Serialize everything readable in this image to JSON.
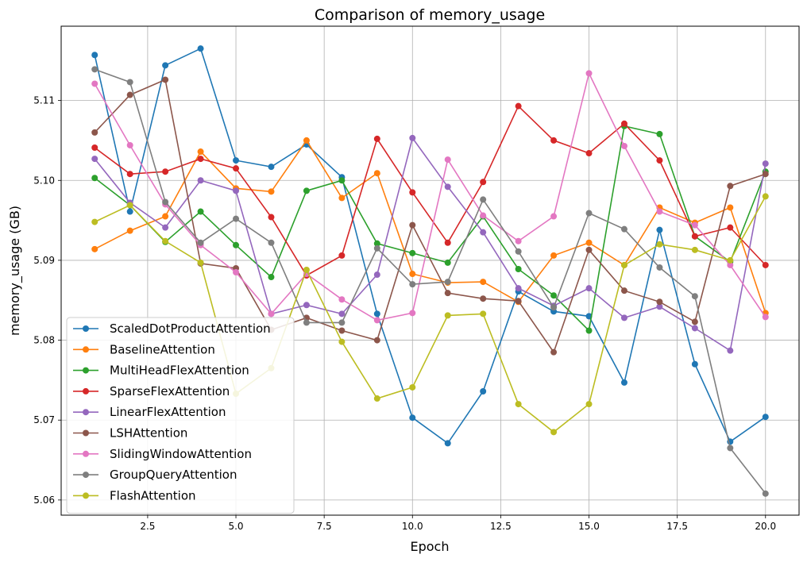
{
  "chart_data": {
    "type": "line",
    "title": "Comparison of memory_usage",
    "xlabel": "Epoch",
    "ylabel": "memory_usage (GB)",
    "xlim": [
      0.05,
      20.95
    ],
    "ylim": [
      5.0581,
      5.1193
    ],
    "xticks": [
      2.5,
      5.0,
      7.5,
      10.0,
      12.5,
      15.0,
      17.5,
      20.0
    ],
    "xtick_labels": [
      "2.5",
      "5.0",
      "7.5",
      "10.0",
      "12.5",
      "15.0",
      "17.5",
      "20.0"
    ],
    "yticks": [
      5.06,
      5.07,
      5.08,
      5.09,
      5.1,
      5.11
    ],
    "ytick_labels": [
      "5.06",
      "5.07",
      "5.08",
      "5.09",
      "5.10",
      "5.11"
    ],
    "grid": true,
    "legend_position": "lower-left",
    "x": [
      1,
      2,
      3,
      4,
      5,
      6,
      7,
      8,
      9,
      10,
      11,
      12,
      13,
      14,
      15,
      16,
      17,
      18,
      19,
      20
    ],
    "series": [
      {
        "name": "ScaledDotProductAttention",
        "color": "#1f77b4",
        "values": [
          5.1157,
          5.0961,
          5.1144,
          5.1165,
          5.1025,
          5.1017,
          5.1045,
          5.1004,
          5.0833,
          5.0703,
          5.0671,
          5.0736,
          5.0861,
          5.0836,
          5.083,
          5.0747,
          5.0938,
          5.077,
          5.0673,
          5.0704
        ]
      },
      {
        "name": "BaselineAttention",
        "color": "#ff7f0e",
        "values": [
          5.0914,
          5.0937,
          5.0955,
          5.1036,
          5.099,
          5.0986,
          5.105,
          5.0978,
          5.1009,
          5.0883,
          5.0872,
          5.0873,
          5.0848,
          5.0906,
          5.0922,
          5.0894,
          5.0966,
          5.0947,
          5.0966,
          5.0834
        ]
      },
      {
        "name": "MultiHeadFlexAttention",
        "color": "#2ca02c",
        "values": [
          5.1003,
          5.0969,
          5.0923,
          5.0961,
          5.0919,
          5.0879,
          5.0987,
          5.1,
          5.0921,
          5.0909,
          5.0897,
          5.0955,
          5.0889,
          5.0856,
          5.0812,
          5.1068,
          5.1058,
          5.093,
          5.0898,
          5.1011
        ]
      },
      {
        "name": "SparseFlexAttention",
        "color": "#d62728",
        "values": [
          5.1041,
          5.1008,
          5.1011,
          5.1027,
          5.1015,
          5.0954,
          5.0881,
          5.0906,
          5.1052,
          5.0985,
          5.0922,
          5.0998,
          5.1093,
          5.105,
          5.1034,
          5.1071,
          5.1025,
          5.093,
          5.0941,
          5.0894
        ]
      },
      {
        "name": "LinearFlexAttention",
        "color": "#9467bd",
        "values": [
          5.1027,
          5.0972,
          5.0941,
          5.1,
          5.0987,
          5.0833,
          5.0844,
          5.0833,
          5.0882,
          5.1053,
          5.0992,
          5.0935,
          5.0865,
          5.0843,
          5.0865,
          5.0828,
          5.0842,
          5.0815,
          5.0787,
          5.1021
        ]
      },
      {
        "name": "LSHAttention",
        "color": "#8c564b",
        "values": [
          5.106,
          5.1107,
          5.1126,
          5.0896,
          5.089,
          5.0813,
          5.0828,
          5.0812,
          5.08,
          5.0944,
          5.0859,
          5.0852,
          5.0849,
          5.0785,
          5.0913,
          5.0862,
          5.0848,
          5.0823,
          5.0993,
          5.1008
        ]
      },
      {
        "name": "SlidingWindowAttention",
        "color": "#e377c2",
        "values": [
          5.1121,
          5.1044,
          5.097,
          5.0919,
          5.0885,
          5.0833,
          5.0883,
          5.0851,
          5.0825,
          5.0834,
          5.1026,
          5.0956,
          5.0924,
          5.0955,
          5.1134,
          5.1043,
          5.0961,
          5.0944,
          5.0894,
          5.0829
        ]
      },
      {
        "name": "GroupQueryAttention",
        "color": "#7f7f7f",
        "values": [
          5.1139,
          5.1123,
          5.0973,
          5.0922,
          5.0952,
          5.0922,
          5.0822,
          5.0822,
          5.0915,
          5.087,
          5.0873,
          5.0976,
          5.0911,
          5.0841,
          5.0959,
          5.0939,
          5.0891,
          5.0855,
          5.0665,
          5.0608
        ]
      },
      {
        "name": "FlashAttention",
        "color": "#bcbd22",
        "values": [
          5.0948,
          5.0969,
          5.0924,
          5.0897,
          5.0733,
          5.0765,
          5.0888,
          5.0798,
          5.0727,
          5.0741,
          5.0831,
          5.0833,
          5.072,
          5.0685,
          5.072,
          5.0894,
          5.092,
          5.0913,
          5.09,
          5.098
        ]
      }
    ]
  }
}
